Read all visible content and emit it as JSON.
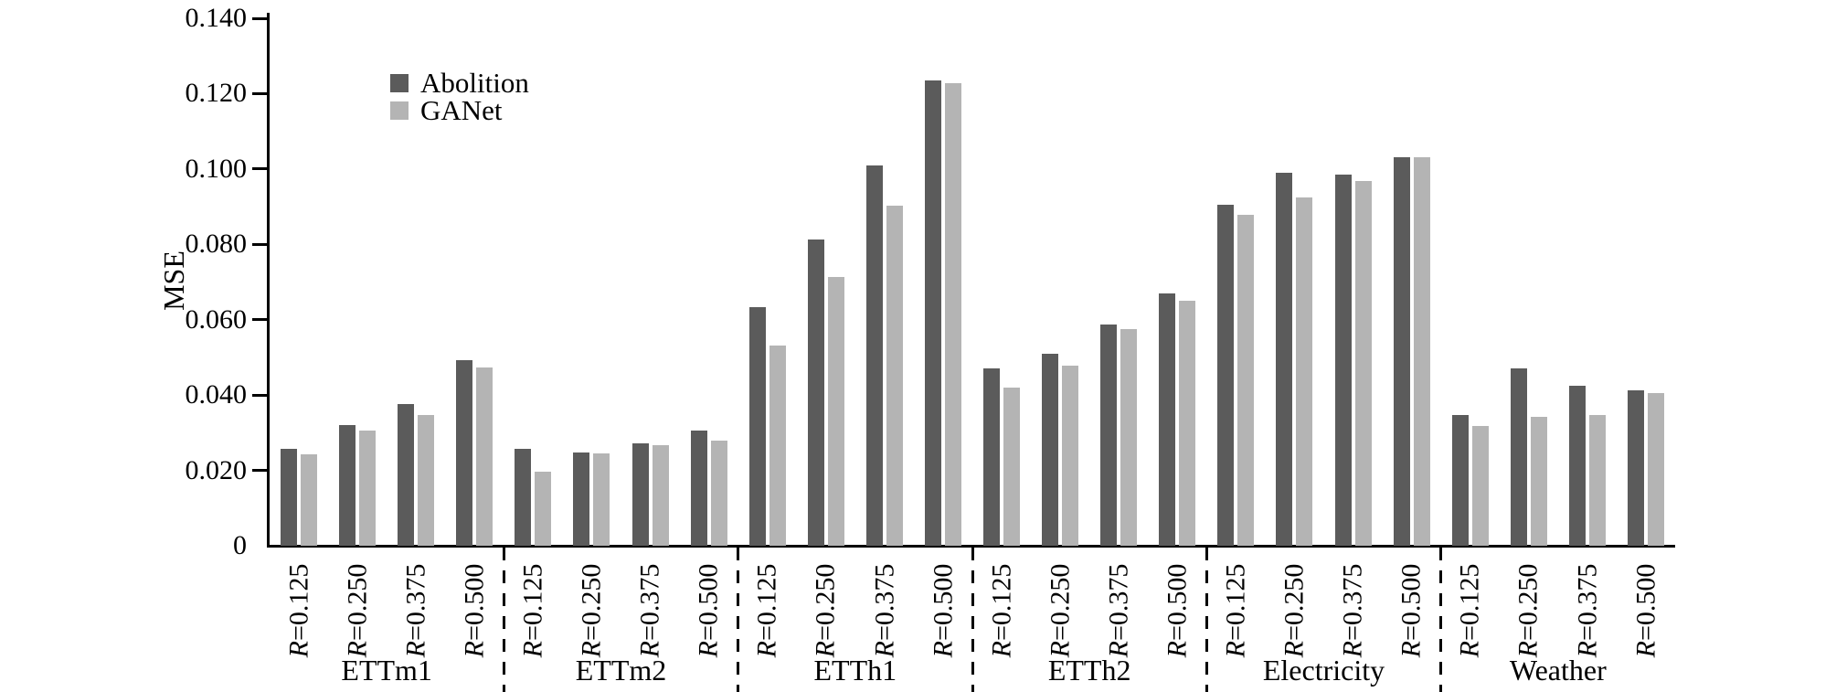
{
  "chart_data": {
    "type": "bar",
    "title": "",
    "xlabel": "",
    "ylabel": "MSE",
    "ylim": [
      0,
      0.14
    ],
    "grid": false,
    "legend_position": "upper-left-inside",
    "yticks": [
      {
        "value": 0,
        "label": "0"
      },
      {
        "value": 0.02,
        "label": "0.020"
      },
      {
        "value": 0.04,
        "label": "0.040"
      },
      {
        "value": 0.06,
        "label": "0.060"
      },
      {
        "value": 0.08,
        "label": "0.080"
      },
      {
        "value": 0.1,
        "label": "0.100"
      },
      {
        "value": 0.12,
        "label": "0.120"
      },
      {
        "value": 0.14,
        "label": "0.140"
      }
    ],
    "groups": [
      "ETTm1",
      "ETTm2",
      "ETTh1",
      "ETTh2",
      "Electricity",
      "Weather"
    ],
    "categories": [
      "R=0.125",
      "R=0.250",
      "R=0.375",
      "R=0.500"
    ],
    "series": [
      {
        "name": "Abolition",
        "color": "#5b5b5b",
        "values": [
          [
            0.0258,
            0.032,
            0.0376,
            0.0492
          ],
          [
            0.0258,
            0.0248,
            0.0271,
            0.0306
          ],
          [
            0.0634,
            0.0812,
            0.101,
            0.1235
          ],
          [
            0.047,
            0.051,
            0.0588,
            0.067
          ],
          [
            0.0905,
            0.099,
            0.0984,
            0.103
          ],
          [
            0.0348,
            0.0471,
            0.0424,
            0.0413
          ]
        ]
      },
      {
        "name": "GANet",
        "color": "#b4b4b4",
        "values": [
          [
            0.0243,
            0.0305,
            0.0347,
            0.0473
          ],
          [
            0.0197,
            0.0245,
            0.0268,
            0.028
          ],
          [
            0.0532,
            0.0713,
            0.0902,
            0.1228
          ],
          [
            0.042,
            0.0478,
            0.0574,
            0.065
          ],
          [
            0.0878,
            0.0925,
            0.0968,
            0.1032
          ],
          [
            0.0318,
            0.0342,
            0.0346,
            0.0406
          ]
        ]
      }
    ]
  }
}
